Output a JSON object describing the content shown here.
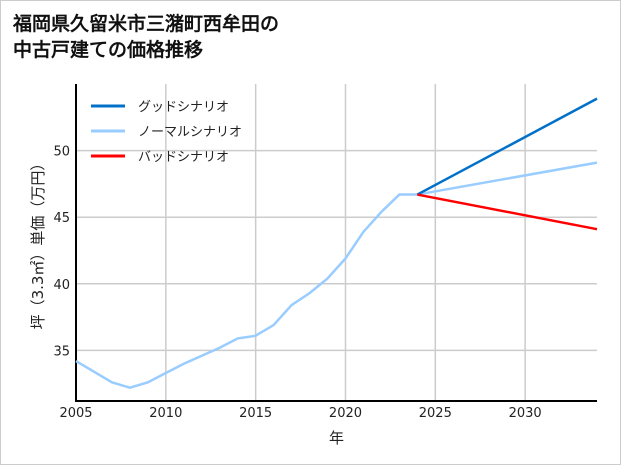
{
  "chart_data": {
    "type": "line",
    "title": "福岡県久留米市三潴町西牟田の\n中古戸建ての価格推移",
    "xlabel": "年",
    "ylabel": "坪（3.3㎡）単価（万円）",
    "xlim": [
      2005,
      2034
    ],
    "ylim": [
      31.2,
      55
    ],
    "xticks": [
      2005,
      2010,
      2015,
      2020,
      2025,
      2030
    ],
    "yticks": [
      35,
      40,
      45,
      50
    ],
    "grid": true,
    "legend_placement": "top-left",
    "series": [
      {
        "name": "グッドシナリオ",
        "color": "#0070C8",
        "x": [
          2024,
          2034
        ],
        "y": [
          46.7,
          53.9
        ]
      },
      {
        "name": "ノーマルシナリオ",
        "color": "#99CCFF",
        "x": [
          2005,
          2006,
          2007,
          2008,
          2009,
          2010,
          2011,
          2012,
          2013,
          2014,
          2015,
          2016,
          2017,
          2018,
          2019,
          2020,
          2021,
          2022,
          2023,
          2024,
          2034
        ],
        "y": [
          34.2,
          33.4,
          32.6,
          32.2,
          32.6,
          33.3,
          34.0,
          34.6,
          35.2,
          35.9,
          36.1,
          36.9,
          38.4,
          39.3,
          40.4,
          41.9,
          43.9,
          45.4,
          46.7,
          46.7,
          49.1
        ]
      },
      {
        "name": "バッドシナリオ",
        "color": "#FF0000",
        "x": [
          2024,
          2034
        ],
        "y": [
          46.7,
          44.1
        ]
      }
    ]
  }
}
